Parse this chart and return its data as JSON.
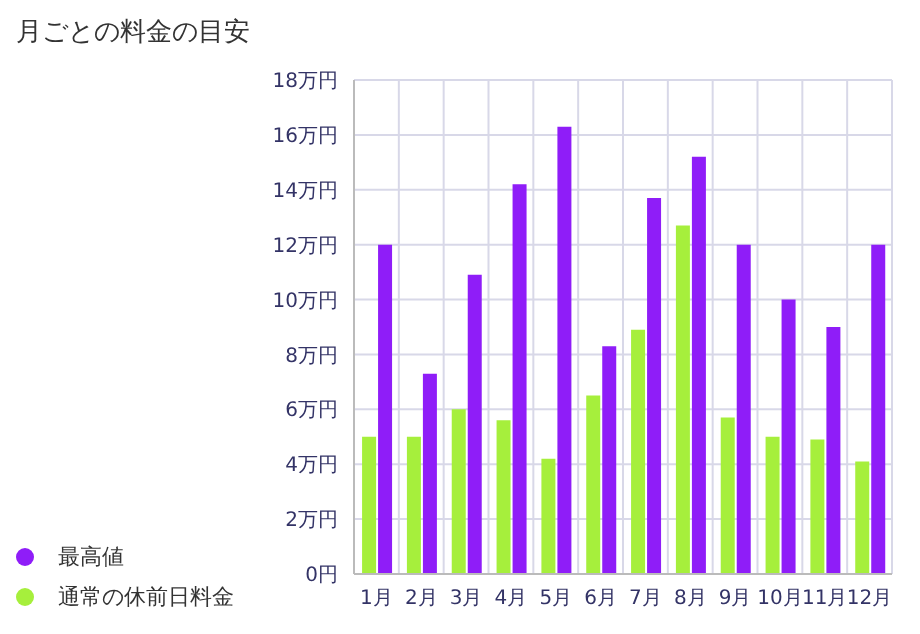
{
  "chart_data": {
    "type": "bar",
    "title": "月ごとの料金の目安",
    "categories": [
      "1月",
      "2月",
      "3月",
      "4月",
      "5月",
      "6月",
      "7月",
      "8月",
      "9月",
      "10月",
      "11月",
      "12月"
    ],
    "series": [
      {
        "name": "通常の休前日料金",
        "color": "#a6ef3c",
        "values": [
          5,
          5,
          6,
          5.6,
          4.2,
          6.5,
          8.9,
          12.7,
          5.7,
          5,
          4.9,
          4.1
        ]
      },
      {
        "name": "最高値",
        "color": "#8f1df8",
        "values": [
          12,
          7.3,
          10.9,
          14.2,
          16.3,
          8.3,
          13.7,
          15.2,
          12,
          10,
          9,
          12
        ]
      }
    ],
    "ylim": [
      0,
      18
    ],
    "yticks": [
      {
        "value": 0,
        "label": "0円"
      },
      {
        "value": 2,
        "label": "2万円"
      },
      {
        "value": 4,
        "label": "4万円"
      },
      {
        "value": 6,
        "label": "6万円"
      },
      {
        "value": 8,
        "label": "8万円"
      },
      {
        "value": 10,
        "label": "10万円"
      },
      {
        "value": 12,
        "label": "12万円"
      },
      {
        "value": 14,
        "label": "14万円"
      },
      {
        "value": 16,
        "label": "16万円"
      },
      {
        "value": 18,
        "label": "18万円"
      }
    ],
    "grid": true,
    "legend": "bottom left"
  }
}
